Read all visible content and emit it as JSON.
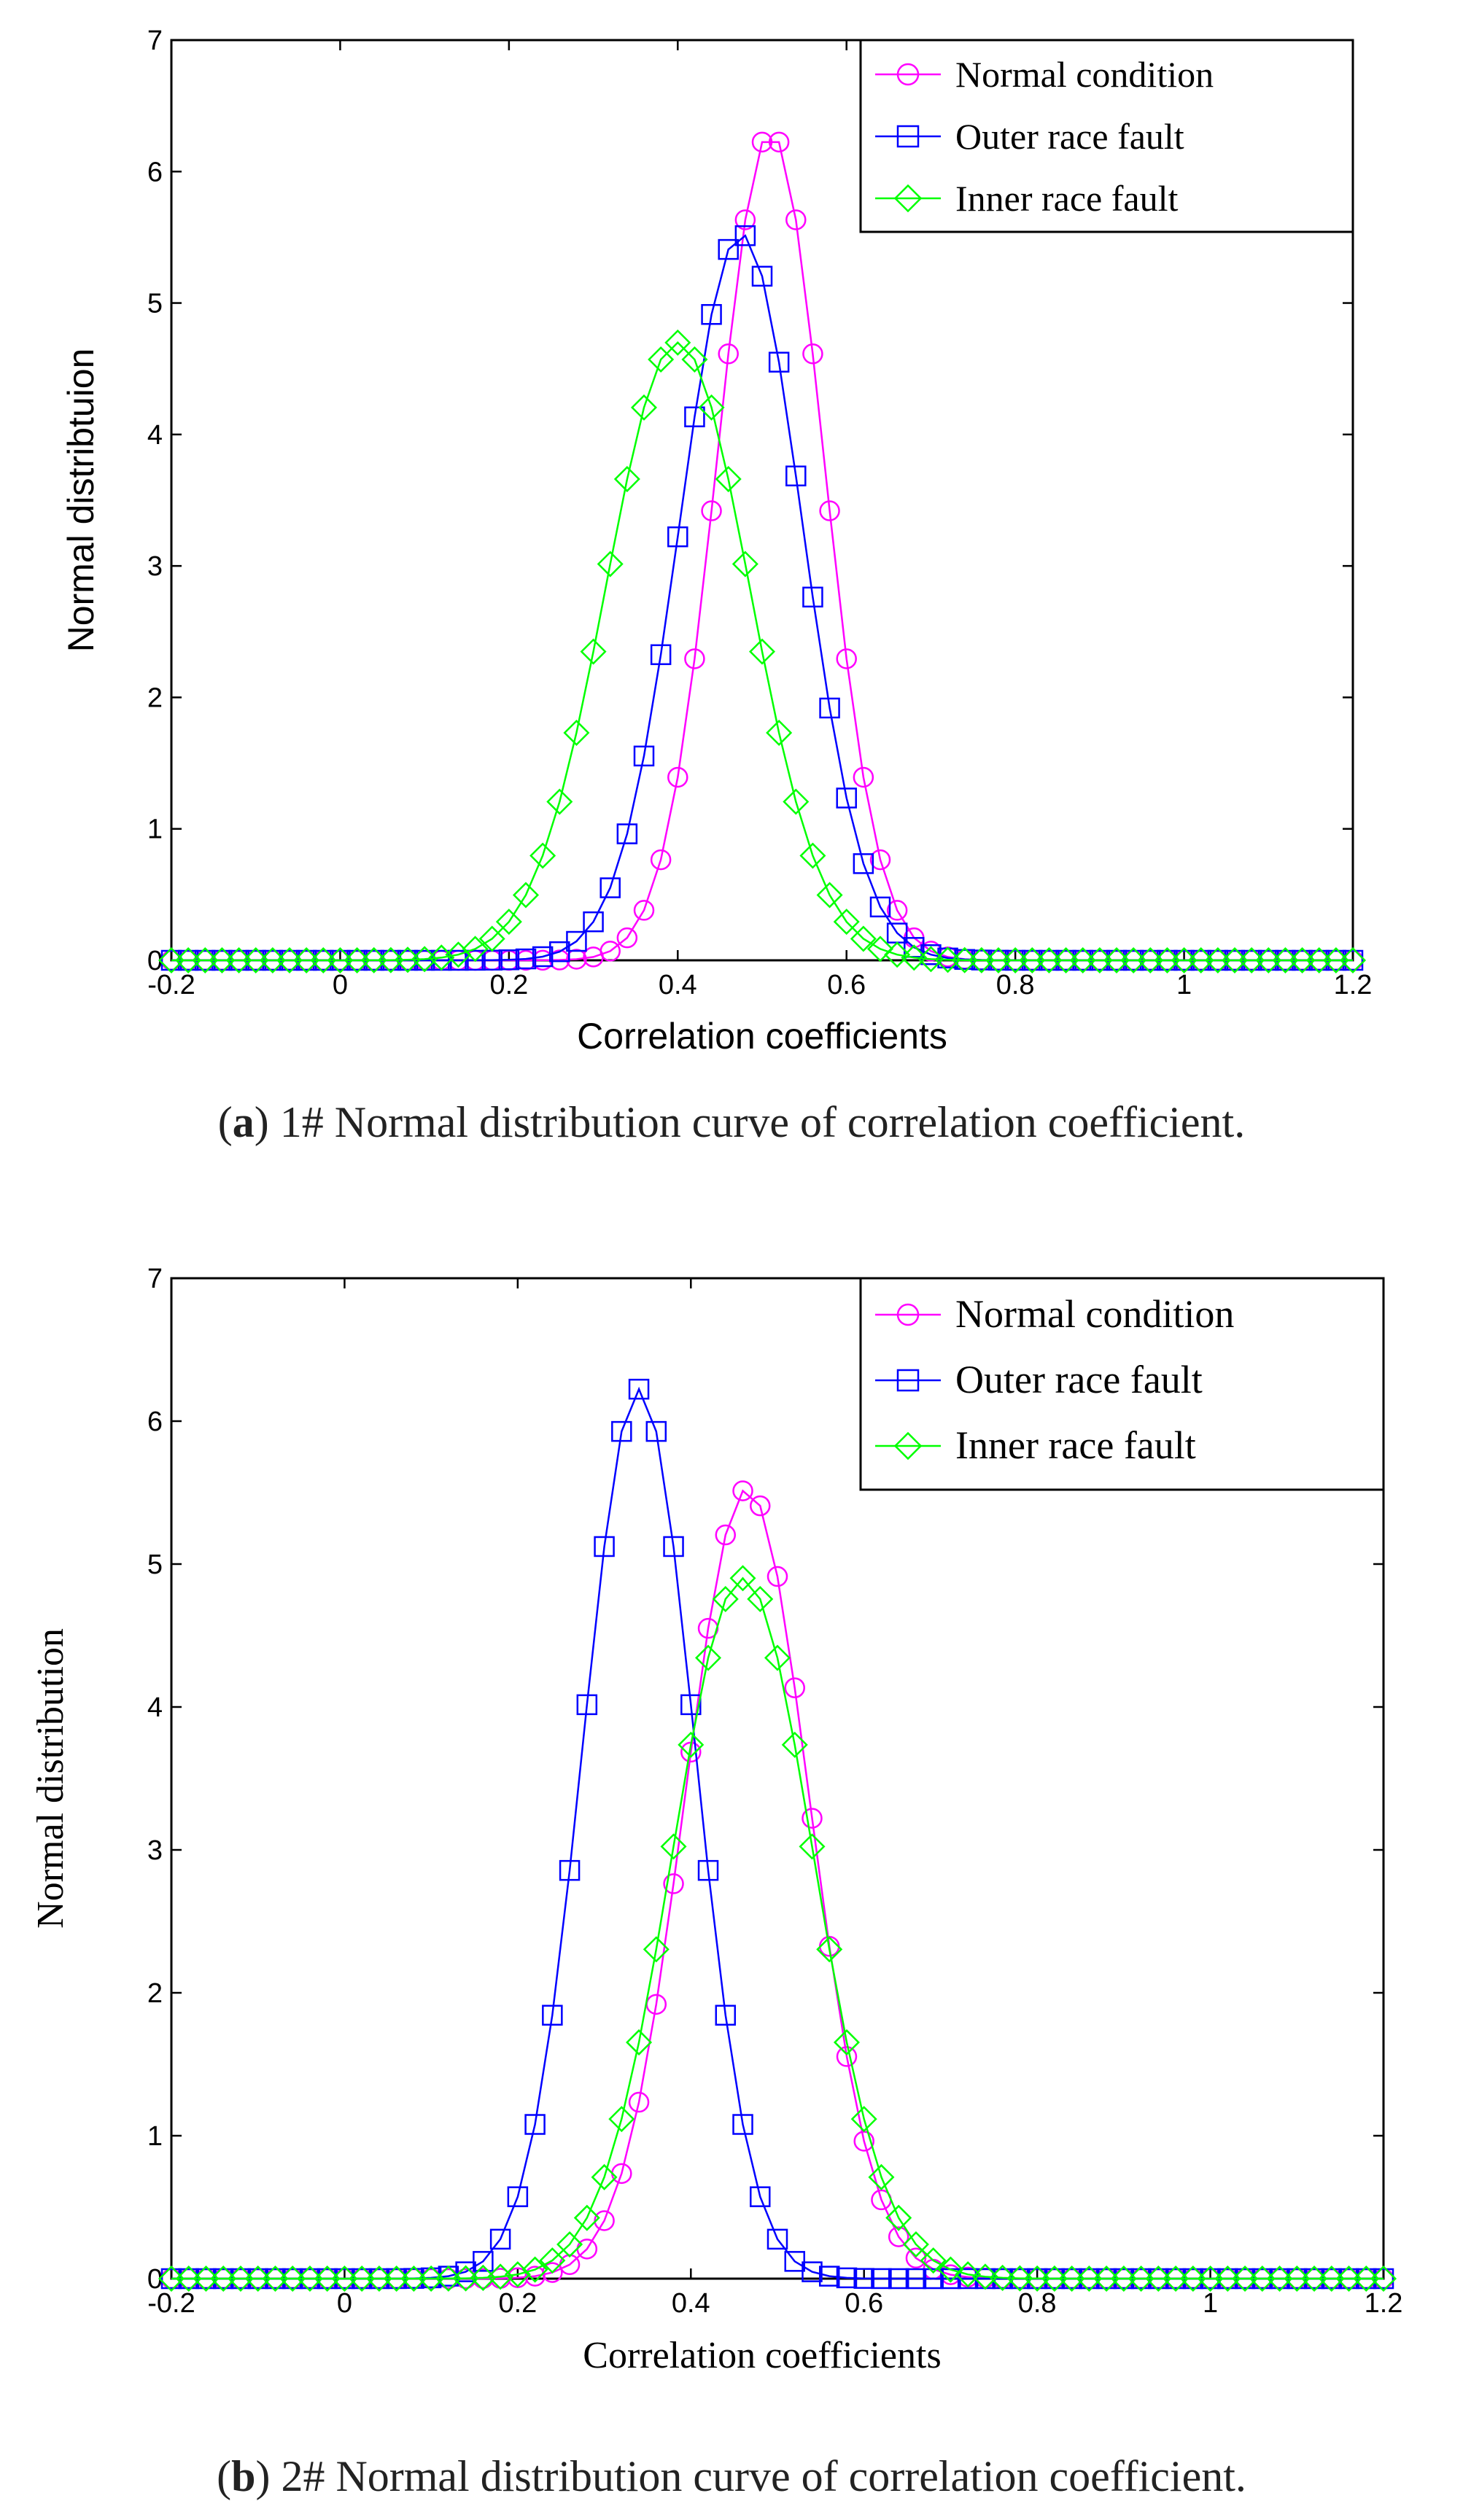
{
  "chart_data": [
    {
      "type": "line",
      "panel": "a",
      "title": "",
      "xlabel": "Correlation coefficients",
      "ylabel": "Normal distribtuion",
      "xlim": [
        -0.2,
        1.2
      ],
      "ylim": [
        0,
        7
      ],
      "x_ticks": [
        "-0.2",
        "0",
        "0.2",
        "0.4",
        "0.6",
        "0.8",
        "1",
        "1.2"
      ],
      "y_ticks": [
        "0",
        "1",
        "2",
        "3",
        "4",
        "5",
        "6",
        "7"
      ],
      "legend_position": "top-right",
      "grid": false,
      "x_range": [
        -0.2,
        1.2,
        0.02
      ],
      "series": [
        {
          "name": "Normal condition",
          "color": "#ff00ff",
          "marker": "circle",
          "mu": 0.51,
          "sigma": 0.0633
        },
        {
          "name": "Outer race fault",
          "color": "#0000ff",
          "marker": "square",
          "mu": 0.475,
          "sigma": 0.0722
        },
        {
          "name": "Inner race fault",
          "color": "#00ff00",
          "marker": "diamond",
          "mu": 0.4,
          "sigma": 0.0849
        }
      ],
      "caption_label": "a",
      "caption_text": " 1# Normal distribution curve of correlation coefficient."
    },
    {
      "type": "line",
      "panel": "b",
      "title": "",
      "xlabel": "Correlation coefficients",
      "ylabel": "Normal distribution",
      "xlim": [
        -0.2,
        1.2
      ],
      "ylim": [
        0,
        7
      ],
      "x_ticks": [
        "-0.2",
        "0",
        "0.2",
        "0.4",
        "0.6",
        "0.8",
        "1",
        "1.2"
      ],
      "y_ticks": [
        "0",
        "1",
        "2",
        "3",
        "4",
        "5",
        "6",
        "7"
      ],
      "legend_position": "top-right",
      "grid": false,
      "x_range": [
        -0.2,
        1.2,
        0.02
      ],
      "series": [
        {
          "name": "Normal condition",
          "color": "#ff00ff",
          "marker": "circle",
          "mu": 0.465,
          "sigma": 0.0722
        },
        {
          "name": "Outer race fault",
          "color": "#0000ff",
          "marker": "square",
          "mu": 0.34,
          "sigma": 0.0641
        },
        {
          "name": "Inner race fault",
          "color": "#00ff00",
          "marker": "diamond",
          "mu": 0.46,
          "sigma": 0.0814
        }
      ],
      "caption_label": "b",
      "caption_text": " 2# Normal distribution curve of correlation coefficient."
    }
  ]
}
